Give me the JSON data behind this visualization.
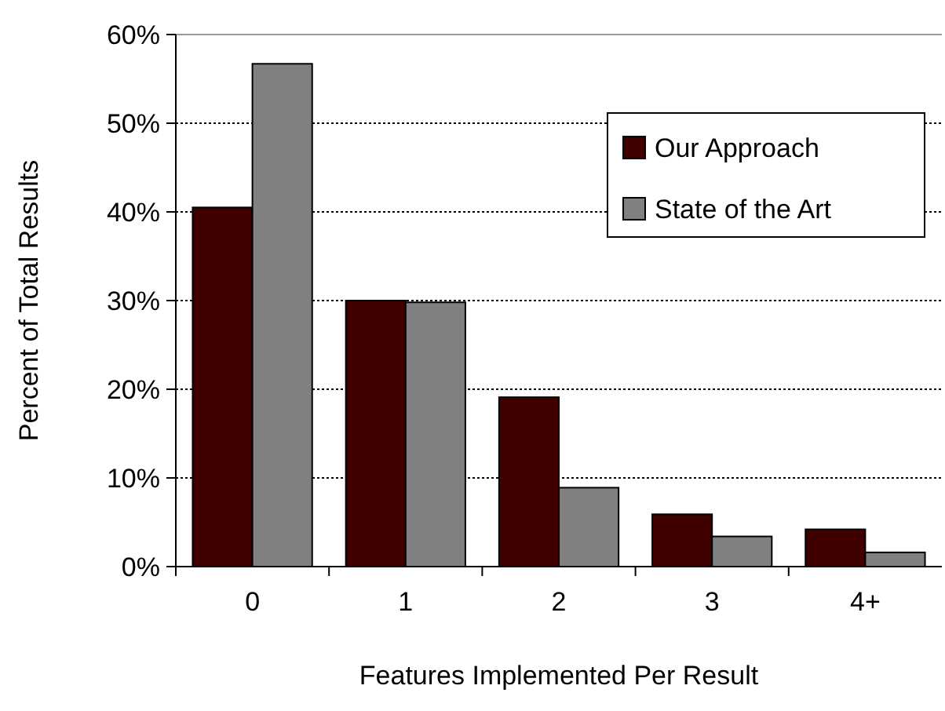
{
  "chart_data": {
    "type": "bar",
    "xlabel": "Features Implemented Per Result",
    "ylabel": "Percent of Total Results",
    "categories": [
      "0",
      "1",
      "2",
      "3",
      "4+"
    ],
    "series": [
      {
        "name": "Our Approach",
        "color": "#400000",
        "values": [
          40.5,
          30,
          19.1,
          5.9,
          4.2
        ]
      },
      {
        "name": "State of the Art",
        "color": "#808080",
        "values": [
          56.7,
          29.8,
          8.9,
          3.4,
          1.6
        ]
      }
    ],
    "ylim": [
      0,
      60
    ],
    "yticks": [
      {
        "value": 0,
        "label": "0%"
      },
      {
        "value": 10,
        "label": "10%"
      },
      {
        "value": 20,
        "label": "20%"
      },
      {
        "value": 30,
        "label": "30%"
      },
      {
        "value": 40,
        "label": "40%"
      },
      {
        "value": 50,
        "label": "50%"
      },
      {
        "value": 60,
        "label": "60%"
      }
    ],
    "grid": "y",
    "legend": "top right"
  }
}
